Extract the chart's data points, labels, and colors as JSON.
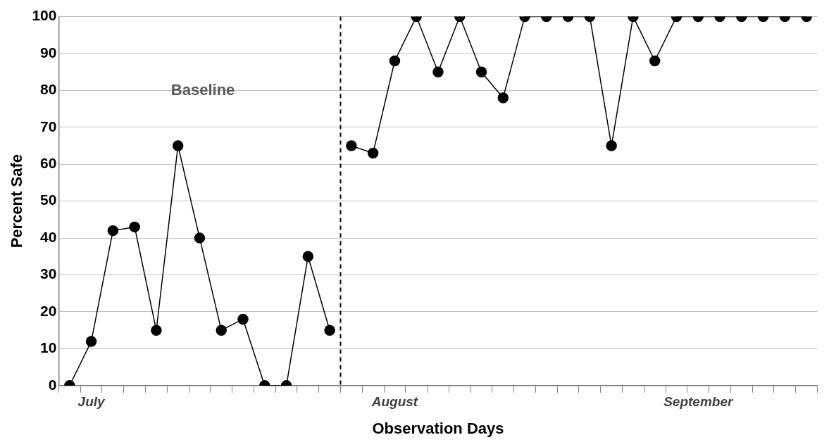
{
  "chart_data": {
    "type": "line",
    "xlabel": "Observation Days",
    "ylabel": "Percent Safe",
    "annotations": [
      "Baseline"
    ],
    "categories": [
      null,
      "July",
      null,
      null,
      null,
      null,
      null,
      null,
      null,
      null,
      null,
      null,
      null,
      null,
      null,
      "August",
      null,
      null,
      null,
      null,
      null,
      null,
      null,
      null,
      null,
      null,
      null,
      null,
      null,
      "September",
      null,
      null,
      null,
      null,
      null
    ],
    "series": [
      {
        "color": "#000000",
        "values": [
          0,
          12,
          42,
          43,
          15,
          65,
          40,
          15,
          18,
          0,
          0,
          35,
          15,
          null,
          null,
          null,
          null,
          null,
          null,
          null,
          null,
          null,
          null,
          null,
          null,
          null,
          null,
          null,
          null,
          null,
          null,
          null,
          null,
          null,
          null
        ]
      },
      {
        "color": "#000000",
        "values": [
          null,
          null,
          null,
          null,
          null,
          null,
          null,
          null,
          null,
          null,
          null,
          null,
          null,
          65,
          63,
          88,
          100,
          85,
          100,
          85,
          78,
          100,
          100,
          100,
          100,
          65,
          100,
          88,
          100,
          100,
          100,
          100,
          100,
          100,
          100
        ]
      }
    ],
    "ylim": [
      0,
      100
    ],
    "yticks": [
      0,
      10,
      20,
      30,
      40,
      50,
      60,
      70,
      80,
      90,
      100
    ],
    "grid": "y",
    "marker": "circle",
    "line_style": "solid"
  }
}
